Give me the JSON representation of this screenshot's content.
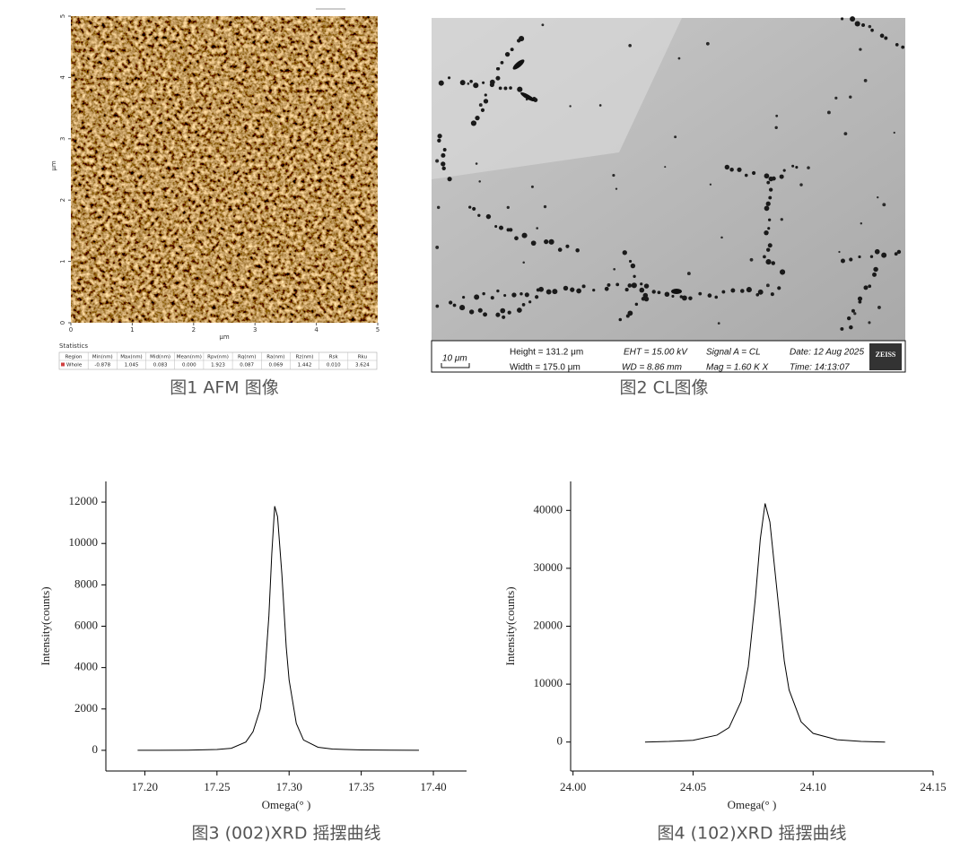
{
  "afm": {
    "caption": "图1 AFM 图像",
    "xticks": [
      0,
      1,
      2,
      3,
      4,
      5
    ],
    "yticks": [
      0,
      1,
      2,
      3,
      4,
      5
    ],
    "x_label": "μm",
    "y_label": "μm",
    "statistics": {
      "title": "Statistics",
      "header": [
        "Region",
        "Min(nm)",
        "Max(nm)",
        "Mid(nm)",
        "Mean(nm)",
        "Rpv(nm)",
        "Rq(nm)",
        "Ra(nm)",
        "Rz(nm)",
        "Rsk",
        "Rku"
      ],
      "rows": [
        [
          "Whole",
          "-0.878",
          "1.045",
          "0.083",
          "0.000",
          "1.923",
          "0.087",
          "0.069",
          "1.442",
          "0.010",
          "3.624"
        ]
      ]
    }
  },
  "cl": {
    "caption": "图2 CL图像",
    "scale_bar": "10 μm",
    "height": "Height = 131.2 μm",
    "width": "Width = 175.0 μm",
    "eht": "EHT = 15.00 kV",
    "wd": "WD = 8.86 mm",
    "signal": "Signal A = CL",
    "mag": "Mag =  1.60 K X",
    "date": "Date: 12 Aug 2025",
    "time": "Time: 14:13:07",
    "logo": "ZEISS"
  },
  "chart_data": [
    {
      "type": "line",
      "caption": "图3 (002)XRD 摇摆曲线",
      "x_label": "Omega(° )",
      "y_label": "Intensity(counts)",
      "color": "#000000",
      "x": [
        17.195,
        17.21,
        17.23,
        17.25,
        17.26,
        17.27,
        17.275,
        17.28,
        17.283,
        17.286,
        17.288,
        17.29,
        17.292,
        17.295,
        17.298,
        17.3,
        17.305,
        17.31,
        17.32,
        17.33,
        17.35,
        17.37,
        17.39
      ],
      "values": [
        0,
        0,
        10,
        40,
        100,
        400,
        900,
        2000,
        3500,
        6500,
        9500,
        11800,
        11300,
        8500,
        5000,
        3400,
        1300,
        500,
        150,
        60,
        20,
        10,
        0
      ],
      "xlim": [
        17.173,
        17.423
      ],
      "ylim": [
        -1000,
        13000
      ],
      "xticks": [
        {
          "value": 17.2,
          "label": "17.20"
        },
        {
          "value": 17.25,
          "label": "17.25"
        },
        {
          "value": 17.3,
          "label": "17.30"
        },
        {
          "value": 17.35,
          "label": "17.35"
        },
        {
          "value": 17.4,
          "label": "17.40"
        }
      ],
      "yticks": [
        0,
        2000,
        4000,
        6000,
        8000,
        10000,
        12000
      ]
    },
    {
      "type": "line",
      "caption": "图4 (102)XRD 摇摆曲线",
      "x_label": "Omega(° )",
      "y_label": "Intensity(counts)",
      "color": "#000000",
      "x": [
        24.03,
        24.04,
        24.05,
        24.06,
        24.065,
        24.07,
        24.073,
        24.076,
        24.078,
        24.08,
        24.082,
        24.085,
        24.088,
        24.09,
        24.095,
        24.1,
        24.11,
        24.12,
        24.13
      ],
      "values": [
        0,
        100,
        300,
        1200,
        2500,
        7000,
        13000,
        25000,
        35000,
        41200,
        38000,
        26000,
        14000,
        9000,
        3500,
        1500,
        400,
        100,
        0
      ],
      "xlim": [
        23.999,
        24.15
      ],
      "ylim": [
        -5000,
        45000
      ],
      "xticks": [
        {
          "value": 24.0,
          "label": "24.00"
        },
        {
          "value": 24.05,
          "label": "24.05"
        },
        {
          "value": 24.1,
          "label": "24.10"
        },
        {
          "value": 24.15,
          "label": "24.15"
        }
      ],
      "yticks": [
        0,
        10000,
        20000,
        30000,
        40000
      ]
    }
  ]
}
